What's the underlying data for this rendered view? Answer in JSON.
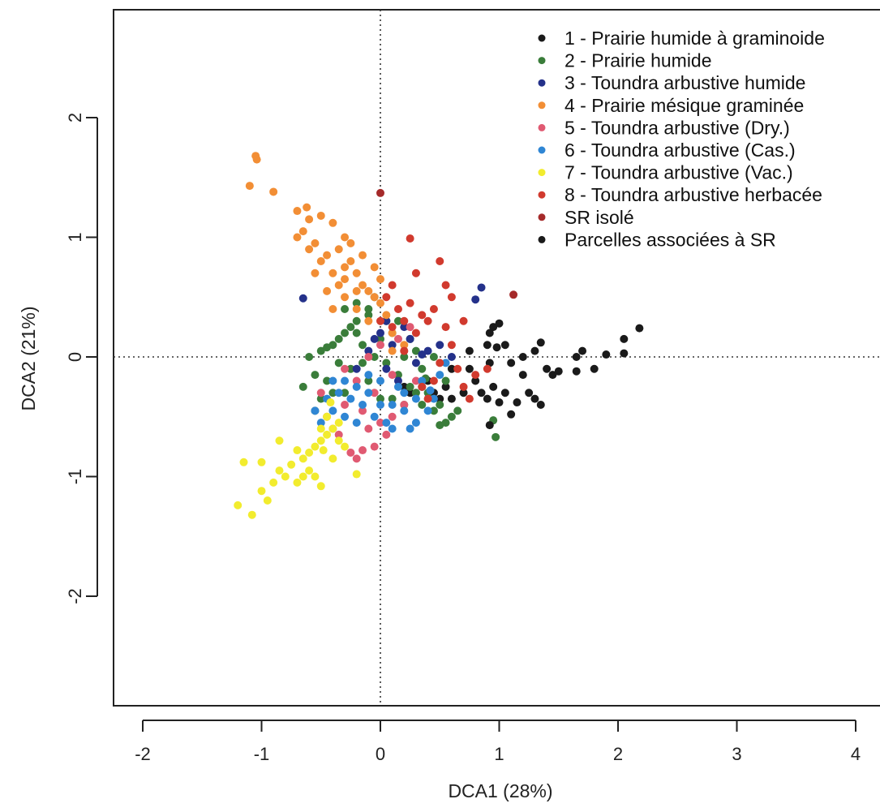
{
  "chart_data": {
    "type": "scatter",
    "xlabel": "DCA1 (28%)",
    "ylabel": "DCA2 (21%)",
    "xlim": [
      -2.25,
      4.1
    ],
    "ylim": [
      -2.93,
      2.9
    ],
    "x_ticks": [
      -2,
      -1,
      0,
      1,
      2,
      3,
      4
    ],
    "x_tick_labels": [
      "-2",
      "-1",
      "0",
      "1",
      "2",
      "3",
      "4"
    ],
    "y_ticks": [
      -2,
      -1,
      0,
      1,
      2
    ],
    "y_tick_labels": [
      "-2",
      "-1",
      "0",
      "1",
      "2"
    ],
    "reference_lines": {
      "x": 0,
      "y": 0,
      "style": "dotted"
    },
    "grid": false,
    "legend_position": "top-right",
    "series": [
      {
        "name": "1 - Prairie humide à graminoide",
        "color": "#1a1a1a",
        "points": [
          [
            0.75,
            0.05
          ],
          [
            0.9,
            0.1
          ],
          [
            0.95,
            0.25
          ],
          [
            1.0,
            0.28
          ],
          [
            1.05,
            0.1
          ],
          [
            1.1,
            -0.05
          ],
          [
            1.2,
            0.0
          ],
          [
            1.3,
            0.05
          ],
          [
            1.35,
            0.12
          ],
          [
            1.4,
            -0.1
          ],
          [
            1.45,
            -0.15
          ],
          [
            1.2,
            -0.15
          ],
          [
            1.25,
            -0.3
          ],
          [
            1.3,
            -0.35
          ],
          [
            1.35,
            -0.4
          ],
          [
            1.15,
            -0.38
          ],
          [
            1.1,
            -0.48
          ],
          [
            1.05,
            -0.3
          ],
          [
            0.95,
            -0.25
          ],
          [
            0.9,
            -0.35
          ],
          [
            0.85,
            -0.3
          ],
          [
            0.8,
            -0.2
          ],
          [
            0.75,
            -0.1
          ],
          [
            0.7,
            -0.3
          ],
          [
            0.6,
            -0.1
          ],
          [
            0.55,
            -0.25
          ],
          [
            0.5,
            -0.35
          ],
          [
            0.45,
            -0.3
          ],
          [
            0.4,
            -0.2
          ],
          [
            0.35,
            -0.25
          ],
          [
            1.65,
            0.0
          ],
          [
            1.7,
            0.05
          ],
          [
            1.8,
            -0.1
          ],
          [
            1.9,
            0.02
          ],
          [
            2.05,
            0.15
          ],
          [
            2.05,
            0.03
          ],
          [
            2.18,
            0.24
          ],
          [
            1.65,
            -0.12
          ],
          [
            1.5,
            -0.12
          ],
          [
            0.92,
            0.2
          ],
          [
            0.98,
            0.08
          ],
          [
            0.92,
            -0.05
          ],
          [
            1.0,
            -0.38
          ],
          [
            0.6,
            -0.35
          ],
          [
            0.2,
            -0.25
          ],
          [
            0.25,
            -0.3
          ]
        ]
      },
      {
        "name": "2 - Prairie humide",
        "color": "#3a7d3a",
        "points": [
          [
            -0.6,
            0.0
          ],
          [
            -0.55,
            -0.15
          ],
          [
            -0.5,
            0.05
          ],
          [
            -0.45,
            -0.2
          ],
          [
            -0.4,
            0.1
          ],
          [
            -0.35,
            -0.05
          ],
          [
            -0.3,
            0.2
          ],
          [
            -0.25,
            -0.1
          ],
          [
            -0.2,
            0.3
          ],
          [
            -0.15,
            0.1
          ],
          [
            -0.1,
            -0.2
          ],
          [
            -0.05,
            0.0
          ],
          [
            0.0,
            0.15
          ],
          [
            0.05,
            -0.05
          ],
          [
            0.1,
            0.2
          ],
          [
            0.15,
            -0.15
          ],
          [
            0.2,
            0.0
          ],
          [
            0.25,
            -0.25
          ],
          [
            0.3,
            0.05
          ],
          [
            0.35,
            -0.1
          ],
          [
            0.4,
            -0.3
          ],
          [
            0.45,
            0.0
          ],
          [
            0.5,
            -0.4
          ],
          [
            0.55,
            -0.2
          ],
          [
            0.6,
            -0.5
          ],
          [
            0.65,
            -0.45
          ],
          [
            0.5,
            -0.57
          ],
          [
            0.95,
            -0.53
          ],
          [
            0.97,
            -0.67
          ],
          [
            0.38,
            -0.18
          ],
          [
            -0.3,
            0.4
          ],
          [
            -0.2,
            0.45
          ],
          [
            -0.1,
            0.35
          ],
          [
            -0.25,
            0.25
          ],
          [
            -0.15,
            -0.05
          ],
          [
            -0.4,
            -0.3
          ],
          [
            -0.5,
            -0.35
          ],
          [
            -0.55,
            -0.45
          ],
          [
            -0.65,
            -0.25
          ],
          [
            -0.3,
            -0.3
          ],
          [
            0.0,
            -0.35
          ],
          [
            0.1,
            -0.35
          ],
          [
            0.15,
            0.3
          ],
          [
            0.25,
            0.15
          ],
          [
            0.3,
            -0.3
          ],
          [
            -0.05,
            0.5
          ],
          [
            -0.1,
            0.4
          ],
          [
            0.55,
            -0.55
          ],
          [
            0.45,
            -0.45
          ],
          [
            0.35,
            -0.4
          ],
          [
            -0.2,
            0.2
          ],
          [
            0.05,
            0.3
          ],
          [
            -0.45,
            0.08
          ],
          [
            -0.35,
            0.15
          ],
          [
            0.2,
            -0.4
          ]
        ]
      },
      {
        "name": "3 - Toundra arbustive humide",
        "color": "#24318a",
        "points": [
          [
            -0.65,
            0.49
          ],
          [
            0.85,
            0.58
          ],
          [
            0.8,
            0.48
          ],
          [
            0.5,
            0.1
          ],
          [
            0.4,
            0.05
          ],
          [
            0.3,
            -0.05
          ],
          [
            0.1,
            0.1
          ],
          [
            0.0,
            0.2
          ],
          [
            -0.1,
            0.05
          ],
          [
            0.05,
            -0.1
          ],
          [
            0.2,
            0.25
          ],
          [
            0.15,
            -0.2
          ],
          [
            -0.2,
            -0.1
          ],
          [
            0.35,
            0.02
          ],
          [
            0.25,
            0.15
          ],
          [
            0.6,
            0.0
          ],
          [
            0.05,
            0.3
          ],
          [
            -0.05,
            0.15
          ]
        ]
      },
      {
        "name": "4 - Prairie mésique graminée",
        "color": "#f28e35",
        "points": [
          [
            -1.05,
            1.68
          ],
          [
            -1.04,
            1.65
          ],
          [
            -1.1,
            1.43
          ],
          [
            -0.9,
            1.38
          ],
          [
            -0.7,
            1.22
          ],
          [
            -0.6,
            1.15
          ],
          [
            -0.65,
            1.05
          ],
          [
            -0.5,
            1.18
          ],
          [
            -0.4,
            1.12
          ],
          [
            -0.55,
            0.95
          ],
          [
            -0.45,
            0.85
          ],
          [
            -0.35,
            0.9
          ],
          [
            -0.3,
            0.75
          ],
          [
            -0.25,
            0.8
          ],
          [
            -0.2,
            0.7
          ],
          [
            -0.15,
            0.6
          ],
          [
            -0.1,
            0.55
          ],
          [
            -0.05,
            0.5
          ],
          [
            0.0,
            0.45
          ],
          [
            -0.4,
            0.7
          ],
          [
            -0.5,
            0.8
          ],
          [
            -0.6,
            0.9
          ],
          [
            -0.3,
            0.5
          ],
          [
            -0.2,
            0.4
          ],
          [
            -0.1,
            0.3
          ],
          [
            0.05,
            0.35
          ],
          [
            0.1,
            0.2
          ],
          [
            0.2,
            0.1
          ],
          [
            -0.35,
            0.6
          ],
          [
            -0.45,
            0.55
          ],
          [
            -0.25,
            0.95
          ],
          [
            -0.15,
            0.85
          ],
          [
            -0.05,
            0.75
          ],
          [
            0.0,
            0.65
          ],
          [
            -0.55,
            0.7
          ],
          [
            -0.3,
            1.0
          ],
          [
            -0.7,
            1.0
          ],
          [
            -0.4,
            0.4
          ],
          [
            -0.2,
            0.55
          ],
          [
            0.1,
            0.05
          ],
          [
            -0.62,
            1.25
          ],
          [
            -0.3,
            0.65
          ]
        ]
      },
      {
        "name": "5 - Toundra arbustive (Dry.)",
        "color": "#e05a72",
        "points": [
          [
            -0.5,
            -0.3
          ],
          [
            -0.45,
            -0.5
          ],
          [
            -0.4,
            -0.6
          ],
          [
            -0.3,
            -0.4
          ],
          [
            -0.2,
            -0.2
          ],
          [
            -0.1,
            0.0
          ],
          [
            0.0,
            0.1
          ],
          [
            0.1,
            -0.15
          ],
          [
            0.2,
            0.05
          ],
          [
            -0.25,
            -0.8
          ],
          [
            -0.2,
            -0.85
          ],
          [
            -0.15,
            -0.78
          ],
          [
            -0.05,
            -0.75
          ],
          [
            0.05,
            -0.65
          ],
          [
            0.1,
            -0.5
          ],
          [
            0.2,
            -0.4
          ],
          [
            0.3,
            -0.2
          ],
          [
            -0.35,
            -0.65
          ],
          [
            -0.15,
            -0.45
          ],
          [
            -0.05,
            -0.3
          ],
          [
            0.15,
            0.15
          ],
          [
            0.25,
            0.25
          ],
          [
            -0.3,
            -0.1
          ],
          [
            0.0,
            -0.55
          ],
          [
            -0.1,
            -0.6
          ]
        ]
      },
      {
        "name": "6 - Toundra arbustive (Cas.)",
        "color": "#2f86d4",
        "points": [
          [
            -0.55,
            -0.45
          ],
          [
            -0.5,
            -0.55
          ],
          [
            -0.45,
            -0.35
          ],
          [
            -0.4,
            -0.45
          ],
          [
            -0.35,
            -0.3
          ],
          [
            -0.3,
            -0.5
          ],
          [
            -0.25,
            -0.35
          ],
          [
            -0.2,
            -0.55
          ],
          [
            -0.15,
            -0.4
          ],
          [
            -0.1,
            -0.3
          ],
          [
            -0.05,
            -0.5
          ],
          [
            0.0,
            -0.4
          ],
          [
            0.05,
            -0.55
          ],
          [
            0.1,
            -0.4
          ],
          [
            0.15,
            -0.25
          ],
          [
            0.2,
            -0.45
          ],
          [
            0.25,
            -0.6
          ],
          [
            0.3,
            -0.35
          ],
          [
            0.35,
            -0.2
          ],
          [
            0.4,
            -0.45
          ],
          [
            0.45,
            -0.35
          ],
          [
            0.5,
            -0.15
          ],
          [
            0.55,
            -0.05
          ],
          [
            -0.3,
            -0.2
          ],
          [
            -0.2,
            -0.25
          ],
          [
            0.0,
            -0.2
          ],
          [
            0.1,
            -0.6
          ],
          [
            0.2,
            -0.3
          ],
          [
            -0.1,
            -0.15
          ],
          [
            0.3,
            -0.55
          ],
          [
            0.42,
            -0.28
          ],
          [
            -0.4,
            -0.2
          ]
        ]
      },
      {
        "name": "7 - Toundra arbustive (Vac.)",
        "color": "#f2ec2e",
        "points": [
          [
            -1.2,
            -1.24
          ],
          [
            -1.08,
            -1.32
          ],
          [
            -1.0,
            -1.12
          ],
          [
            -0.95,
            -1.2
          ],
          [
            -0.9,
            -1.05
          ],
          [
            -0.85,
            -0.95
          ],
          [
            -0.8,
            -1.0
          ],
          [
            -0.75,
            -0.9
          ],
          [
            -0.7,
            -1.05
          ],
          [
            -0.65,
            -0.85
          ],
          [
            -0.6,
            -0.8
          ],
          [
            -0.55,
            -0.75
          ],
          [
            -0.5,
            -0.7
          ],
          [
            -0.45,
            -0.65
          ],
          [
            -0.4,
            -0.6
          ],
          [
            -0.35,
            -0.55
          ],
          [
            -0.3,
            -0.75
          ],
          [
            -0.55,
            -1.0
          ],
          [
            -0.5,
            -1.08
          ],
          [
            -0.6,
            -0.95
          ],
          [
            -0.7,
            -0.78
          ],
          [
            -0.4,
            -0.85
          ],
          [
            -0.45,
            -0.5
          ],
          [
            -0.35,
            -0.7
          ],
          [
            -0.5,
            -0.6
          ],
          [
            -0.85,
            -0.7
          ],
          [
            -1.15,
            -0.88
          ],
          [
            -1.0,
            -0.88
          ],
          [
            -0.2,
            -0.98
          ],
          [
            -0.65,
            -1.0
          ],
          [
            -0.42,
            -0.38
          ],
          [
            -0.48,
            -0.78
          ]
        ]
      },
      {
        "name": "8 - Toundra arbustive herbacée",
        "color": "#d13a2e",
        "points": [
          [
            0.25,
            0.99
          ],
          [
            0.3,
            0.7
          ],
          [
            0.5,
            0.8
          ],
          [
            0.55,
            0.6
          ],
          [
            0.6,
            0.5
          ],
          [
            0.45,
            0.4
          ],
          [
            0.4,
            0.3
          ],
          [
            0.35,
            0.35
          ],
          [
            0.3,
            0.2
          ],
          [
            0.2,
            0.3
          ],
          [
            0.15,
            0.4
          ],
          [
            0.1,
            0.6
          ],
          [
            0.05,
            0.5
          ],
          [
            0.0,
            0.3
          ],
          [
            0.7,
            0.3
          ],
          [
            0.6,
            0.1
          ],
          [
            0.65,
            -0.1
          ],
          [
            0.7,
            -0.25
          ],
          [
            0.75,
            -0.35
          ],
          [
            0.8,
            -0.15
          ],
          [
            0.5,
            -0.05
          ],
          [
            0.45,
            -0.2
          ],
          [
            0.4,
            -0.35
          ],
          [
            0.35,
            -0.25
          ],
          [
            0.9,
            -0.1
          ],
          [
            0.55,
            0.25
          ],
          [
            0.25,
            0.45
          ],
          [
            0.1,
            0.25
          ],
          [
            0.2,
            0.05
          ]
        ]
      },
      {
        "name": "SR isolé",
        "color": "#a52a2a",
        "points": [
          [
            0.0,
            1.37
          ],
          [
            1.12,
            0.52
          ]
        ]
      },
      {
        "name": "Parcelles associées à SR",
        "color": "#1a1a1a",
        "points": [
          [
            0.92,
            -0.57
          ]
        ]
      }
    ]
  }
}
